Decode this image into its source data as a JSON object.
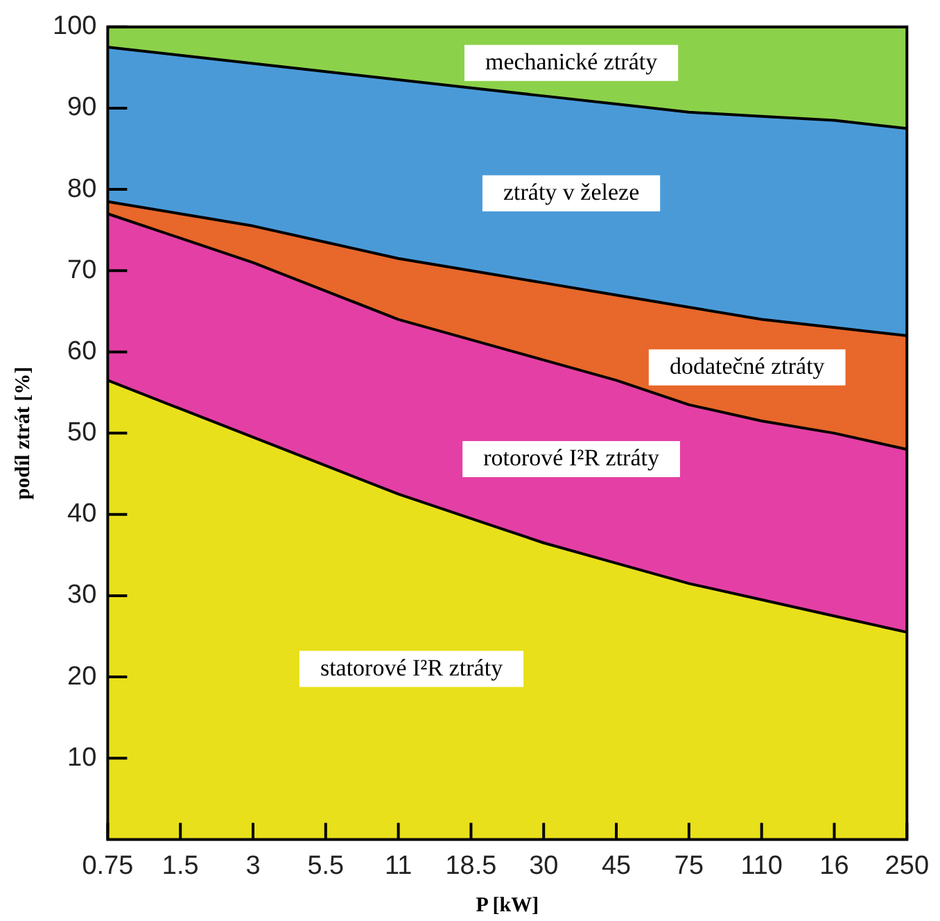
{
  "chart_data": {
    "type": "area",
    "stacked": true,
    "xlabel": "P [kW]",
    "ylabel": "podíl ztrát [%]",
    "categories": [
      "0.75",
      "1.5",
      "3",
      "5.5",
      "11",
      "18.5",
      "30",
      "45",
      "75",
      "110",
      "16",
      "250"
    ],
    "series": [
      {
        "name": "statorové I²R ztráty",
        "color": "#e8e01a",
        "values": [
          56.5,
          53,
          49.5,
          46,
          42.5,
          39.5,
          36.5,
          34,
          31.5,
          29.5,
          27.5,
          25.5
        ]
      },
      {
        "name": "rotorové I²R ztráty",
        "color": "#e43fa5",
        "values": [
          20.5,
          21,
          21.5,
          21.5,
          21.5,
          22,
          22.5,
          22.5,
          22,
          22,
          22.5,
          22.5
        ]
      },
      {
        "name": "dodatečné ztráty",
        "color": "#e8672a",
        "values": [
          1.5,
          3,
          4.5,
          6,
          7.5,
          8.5,
          9.5,
          10.5,
          12,
          12.5,
          13,
          14
        ]
      },
      {
        "name": "ztráty v železe",
        "color": "#4a9ad8",
        "values": [
          19,
          19.5,
          20,
          21,
          22,
          22.5,
          23,
          23.5,
          24,
          25,
          25.5,
          25.5
        ]
      },
      {
        "name": "mechanické ztráty",
        "color": "#8cd14a",
        "values": [
          2.5,
          3.5,
          4.5,
          5.5,
          6.5,
          7.5,
          8.5,
          9.5,
          10.5,
          11,
          11.5,
          12.5
        ]
      }
    ],
    "ylim": [
      0,
      100
    ],
    "yticks": [
      10,
      20,
      30,
      40,
      50,
      60,
      70,
      80,
      90,
      100
    ],
    "legend": false
  }
}
